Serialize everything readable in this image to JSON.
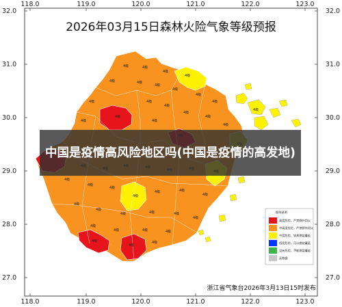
{
  "map": {
    "title": "2026年03月15日森林火险气象等级预报",
    "credit": "浙江省气象台2026年3月13日15时发布",
    "lon_ticks": [
      "118.0",
      "119.0",
      "120.0",
      "121.0",
      "122.0",
      "123.0"
    ],
    "lat_ticks": [
      "32.0",
      "31.0",
      "30.0",
      "29.0",
      "28.0",
      "27.0"
    ],
    "lon_range": [
      118.0,
      123.0
    ],
    "lat_range": [
      27.0,
      32.0
    ],
    "region_value_label": "4级",
    "legend": {
      "title": "图例说明",
      "items": [
        {
          "label": "高度危险，严禁野外用火",
          "color": "#e8141b"
        },
        {
          "label": "中高度危险，严禁野外用火",
          "color": "#f7931e"
        },
        {
          "label": "中度危险，较易燃烧蔓延",
          "color": "#fff200"
        },
        {
          "label": "低度危险，可以燃烧蔓延",
          "color": "#0038ff"
        },
        {
          "label": "没有危险，不能燃烧蔓延",
          "color": "#39b54a"
        },
        {
          "label": "无数据",
          "color": "#c8c8c8"
        }
      ]
    },
    "colors": {
      "level_orange": "#f7931e",
      "level_red": "#e8141b",
      "level_yellow": "#fff200",
      "level_olive": "#c9c430",
      "border": "#ffffff",
      "frame": "#444444"
    }
  },
  "banner": {
    "text": "中国是疫情高风险地区吗(中国是疫情的高发地)"
  }
}
